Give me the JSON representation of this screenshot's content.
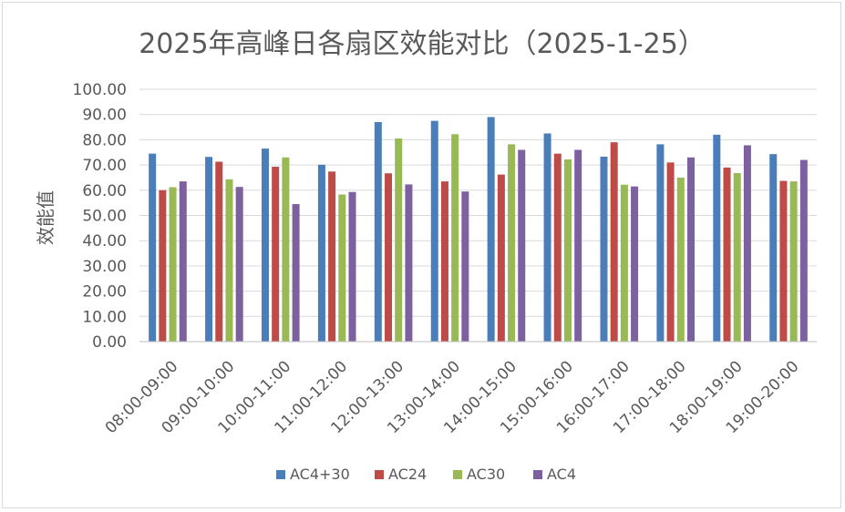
{
  "chart_data": {
    "type": "bar",
    "title": "2025年高峰日各扇区效能对比（2025-1-25）",
    "xlabel": "",
    "ylabel": "效能值",
    "ylim": [
      0,
      100
    ],
    "yticks": [
      "0.00",
      "10.00",
      "20.00",
      "30.00",
      "40.00",
      "50.00",
      "60.00",
      "70.00",
      "80.00",
      "90.00",
      "100.00"
    ],
    "grid": true,
    "legend_position": "bottom",
    "categories": [
      "08:00-09:00",
      "09:00-10:00",
      "10:00-11:00",
      "11:00-12:00",
      "12:00-13:00",
      "13:00-14:00",
      "14:00-15:00",
      "15:00-16:00",
      "16:00-17:00",
      "17:00-18:00",
      "18:00-19:00",
      "19:00-20:00"
    ],
    "series": [
      {
        "name": "AC4+30",
        "color": "#4a7ebb",
        "values": [
          74.5,
          73.2,
          76.5,
          70.1,
          87.0,
          87.5,
          89.0,
          82.5,
          73.3,
          78.2,
          82.0,
          74.3
        ]
      },
      {
        "name": "AC24",
        "color": "#be4b48",
        "values": [
          60.0,
          71.3,
          69.3,
          67.4,
          66.7,
          63.5,
          66.2,
          74.5,
          79.0,
          71.0,
          69.0,
          63.7
        ]
      },
      {
        "name": "AC30",
        "color": "#98b954",
        "values": [
          61.2,
          64.3,
          73.0,
          58.3,
          80.5,
          82.2,
          78.2,
          72.2,
          62.2,
          65.0,
          66.8,
          63.5
        ]
      },
      {
        "name": "AC4",
        "color": "#7d60a0",
        "values": [
          63.5,
          61.3,
          54.5,
          59.3,
          62.3,
          59.5,
          76.0,
          76.0,
          61.5,
          73.0,
          77.8,
          72.0
        ]
      }
    ]
  }
}
